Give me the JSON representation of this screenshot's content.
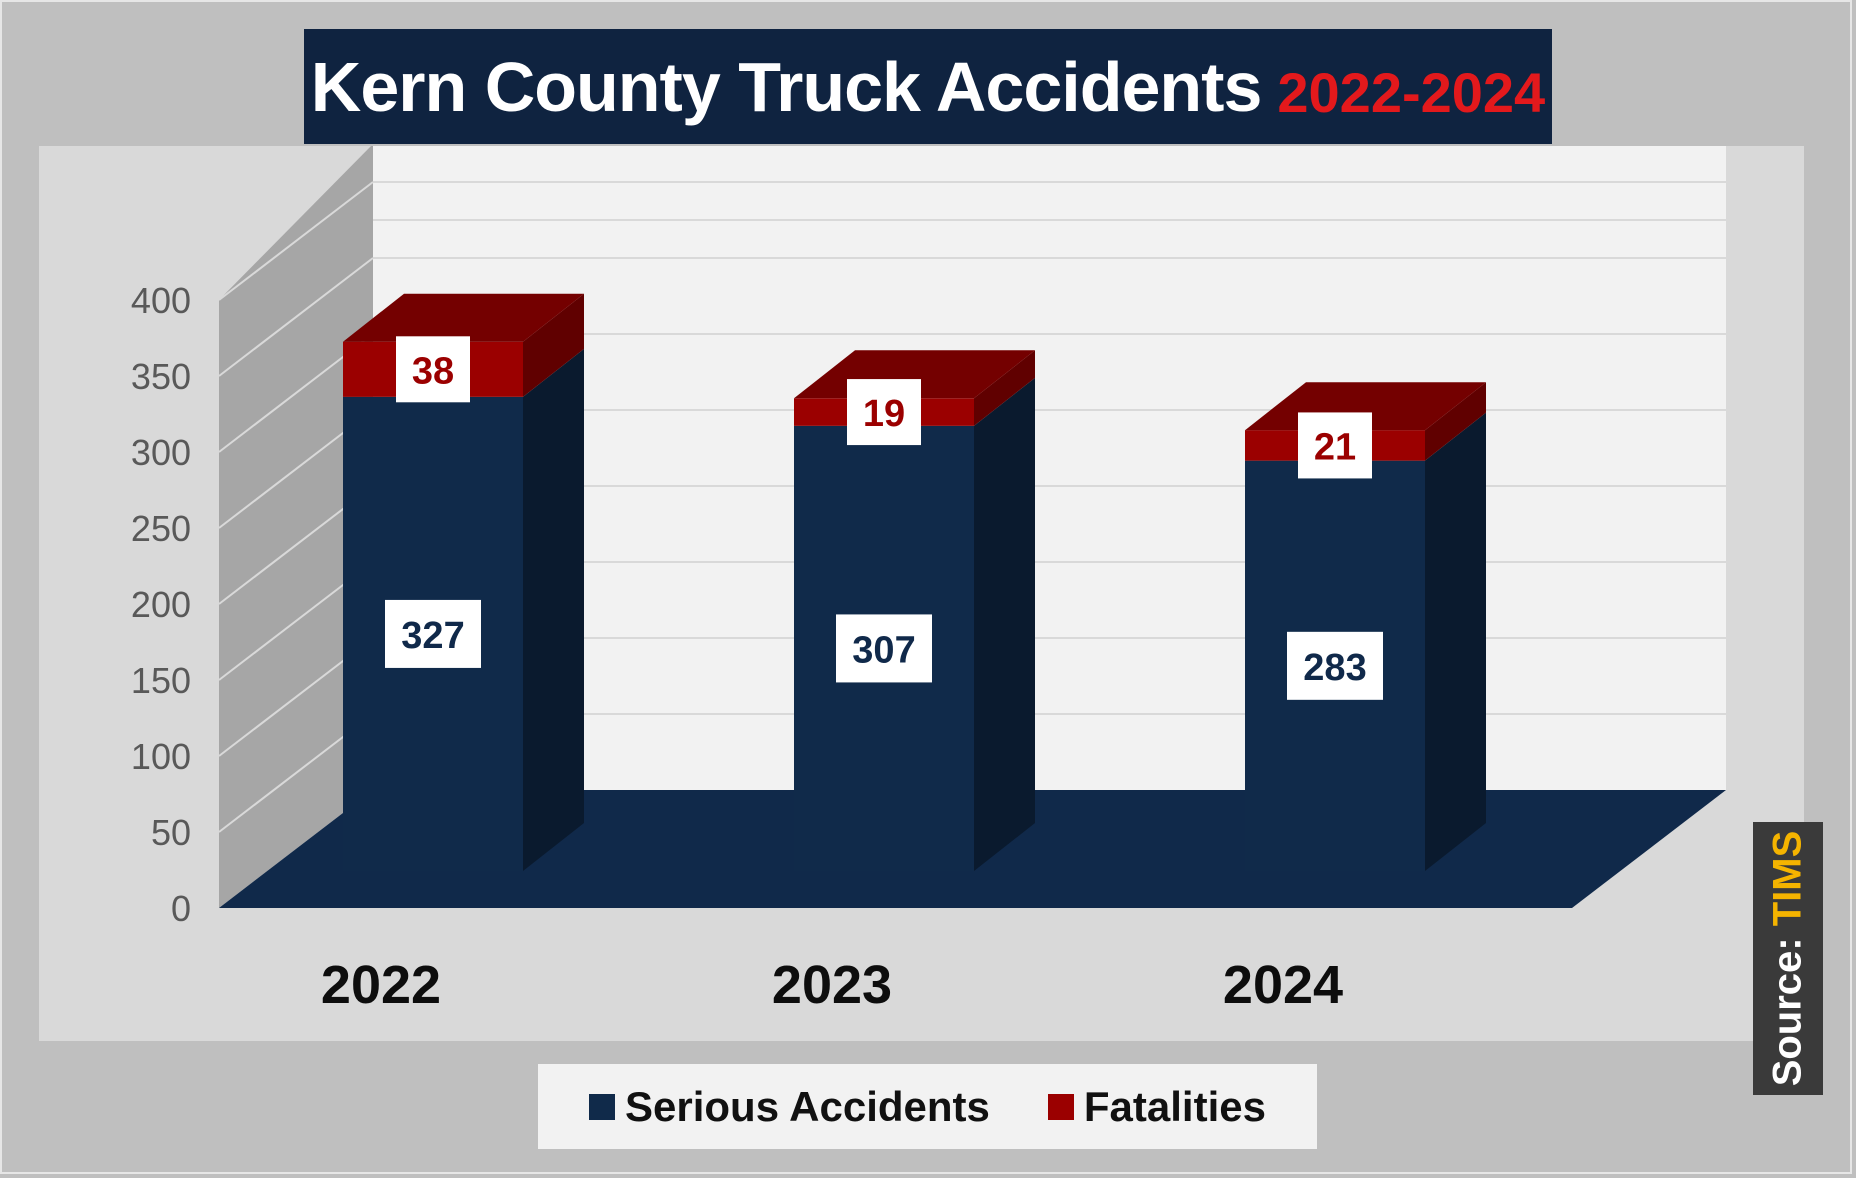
{
  "title": {
    "main": "Kern County Truck Accidents",
    "years": "2022-2024"
  },
  "source": {
    "label": "Source:",
    "value": "TIMS"
  },
  "legend": {
    "items": [
      {
        "label": "Serious Accidents",
        "color": "#102a4a"
      },
      {
        "label": "Fatalities",
        "color": "#9b0000"
      }
    ]
  },
  "chart_data": {
    "type": "bar",
    "stacked": true,
    "three_d": true,
    "categories": [
      "2022",
      "2023",
      "2024"
    ],
    "series": [
      {
        "name": "Serious Accidents",
        "values": [
          327,
          307,
          283
        ],
        "color": "#102a4a"
      },
      {
        "name": "Fatalities",
        "values": [
          38,
          19,
          21
        ],
        "color": "#9b0000"
      }
    ],
    "y_ticks": [
      0,
      50,
      100,
      150,
      200,
      250,
      300,
      350,
      400
    ],
    "ylim": [
      0,
      400
    ],
    "grid": true,
    "legend_position": "bottom",
    "data_labels": true
  }
}
